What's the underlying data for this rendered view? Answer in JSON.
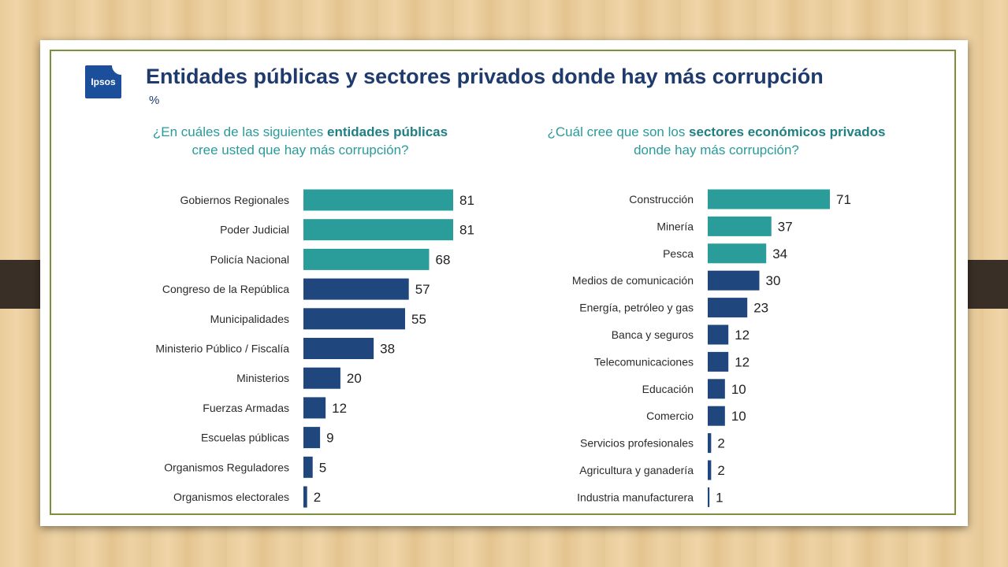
{
  "slide": {
    "title": "Entidades públicas y sectores privados donde hay más corrupción",
    "unit": "%",
    "logo_text": "Ipsos"
  },
  "questions": {
    "left": {
      "pre": "¿En cuáles de las siguientes ",
      "bold": "entidades públicas",
      "post": " cree usted que hay más corrupción?"
    },
    "right": {
      "pre": "¿Cuál cree que son los ",
      "bold": "sectores económicos privados",
      "post": " donde hay más corrupción?"
    }
  },
  "colors": {
    "teal": "#2a9d9b",
    "navy": "#1f477e"
  },
  "chart_data": [
    {
      "type": "bar",
      "orientation": "horizontal",
      "title": "",
      "xlabel": "",
      "ylabel": "",
      "xlim": [
        0,
        81
      ],
      "categories": [
        "Gobiernos Regionales",
        "Poder Judicial",
        "Policía Nacional",
        "Congreso de la República",
        "Municipalidades",
        "Ministerio Público / Fiscalía",
        "Ministerios",
        "Fuerzas Armadas",
        "Escuelas públicas",
        "Organismos Reguladores",
        "Organismos electorales"
      ],
      "values": [
        81,
        81,
        68,
        57,
        55,
        38,
        20,
        12,
        9,
        5,
        2
      ],
      "bar_colors": [
        "#2a9d9b",
        "#2a9d9b",
        "#2a9d9b",
        "#1f477e",
        "#1f477e",
        "#1f477e",
        "#1f477e",
        "#1f477e",
        "#1f477e",
        "#1f477e",
        "#1f477e"
      ]
    },
    {
      "type": "bar",
      "orientation": "horizontal",
      "title": "",
      "xlabel": "",
      "ylabel": "",
      "xlim": [
        0,
        71
      ],
      "categories": [
        "Construcción",
        "Minería",
        "Pesca",
        "Medios de comunicación",
        "Energía, petróleo y gas",
        "Banca y seguros",
        "Telecomunicaciones",
        "Educación",
        "Comercio",
        "Servicios profesionales",
        "Agricultura y ganadería",
        "Industria manufacturera"
      ],
      "values": [
        71,
        37,
        34,
        30,
        23,
        12,
        12,
        10,
        10,
        2,
        2,
        1
      ],
      "bar_colors": [
        "#2a9d9b",
        "#2a9d9b",
        "#2a9d9b",
        "#1f477e",
        "#1f477e",
        "#1f477e",
        "#1f477e",
        "#1f477e",
        "#1f477e",
        "#1f477e",
        "#1f477e",
        "#1f477e"
      ]
    }
  ]
}
